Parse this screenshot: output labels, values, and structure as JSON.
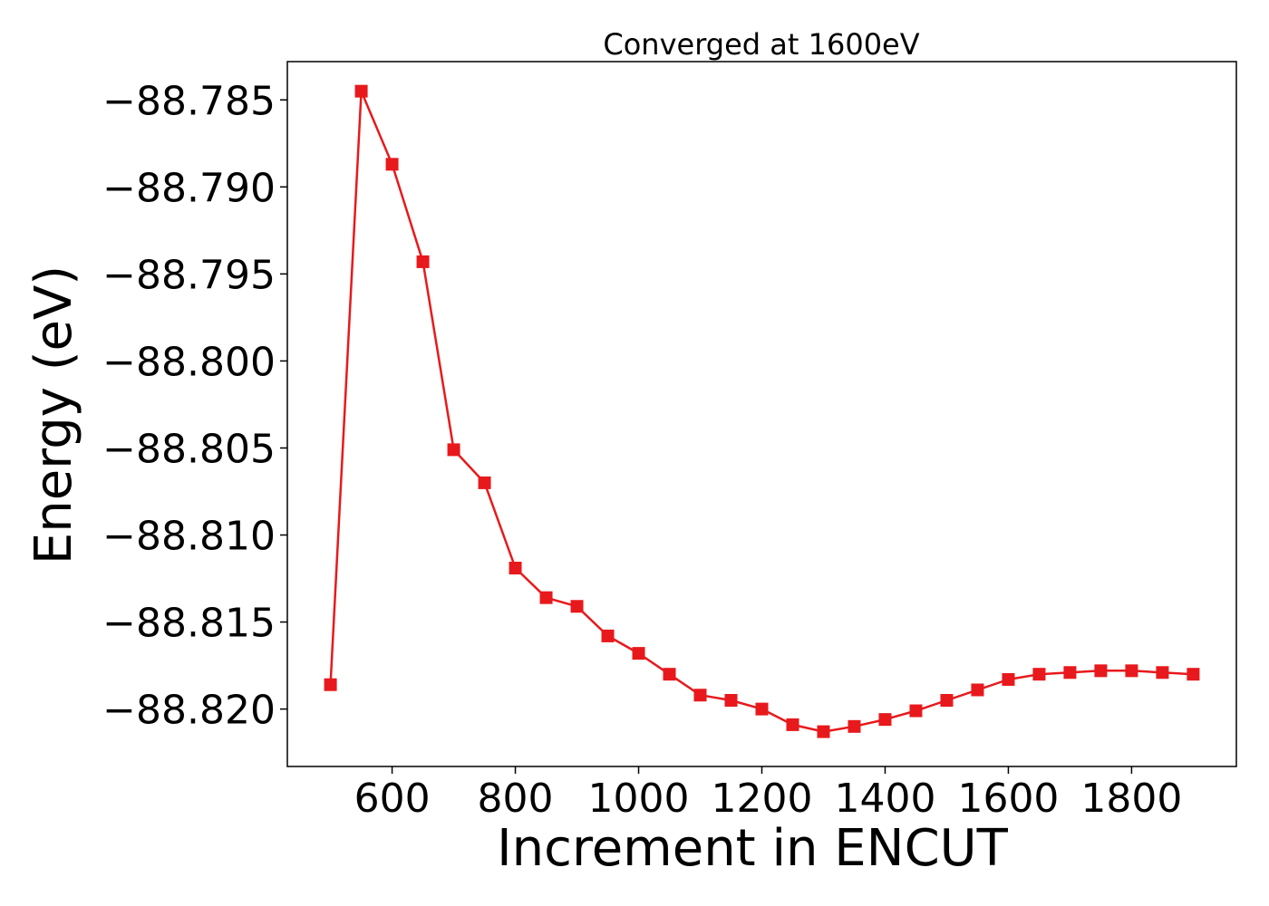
{
  "chart_data": {
    "type": "line",
    "title": "Converged at 1600eV",
    "xlabel": "Increment in ENCUT",
    "ylabel": "Energy (eV)",
    "xlim": [
      430,
      1970
    ],
    "ylim": [
      -88.8233,
      -88.7828
    ],
    "xticks": [
      600,
      800,
      1000,
      1200,
      1400,
      1600,
      1800
    ],
    "xtick_labels": [
      "600",
      "800",
      "1000",
      "1200",
      "1400",
      "1600",
      "1800"
    ],
    "yticks": [
      -88.785,
      -88.79,
      -88.795,
      -88.8,
      -88.805,
      -88.81,
      -88.815,
      -88.82
    ],
    "ytick_labels": [
      "−88.785",
      "−88.790",
      "−88.795",
      "−88.800",
      "−88.805",
      "−88.810",
      "−88.815",
      "−88.820"
    ],
    "grid": false,
    "series": [
      {
        "color": "#e8191c",
        "marker": "square",
        "x": [
          500,
          550,
          600,
          650,
          700,
          750,
          800,
          850,
          900,
          950,
          1000,
          1050,
          1100,
          1150,
          1200,
          1250,
          1300,
          1350,
          1400,
          1450,
          1500,
          1550,
          1600,
          1650,
          1700,
          1750,
          1800,
          1850,
          1900
        ],
        "y": [
          -88.8186,
          -88.7845,
          -88.7887,
          -88.7943,
          -88.8051,
          -88.807,
          -88.8119,
          -88.8136,
          -88.8141,
          -88.8158,
          -88.8168,
          -88.818,
          -88.8192,
          -88.8195,
          -88.82,
          -88.8209,
          -88.8213,
          -88.821,
          -88.8206,
          -88.8201,
          -88.8195,
          -88.8189,
          -88.8183,
          -88.818,
          -88.8179,
          -88.8178,
          -88.8178,
          -88.8179,
          -88.818
        ]
      }
    ]
  }
}
